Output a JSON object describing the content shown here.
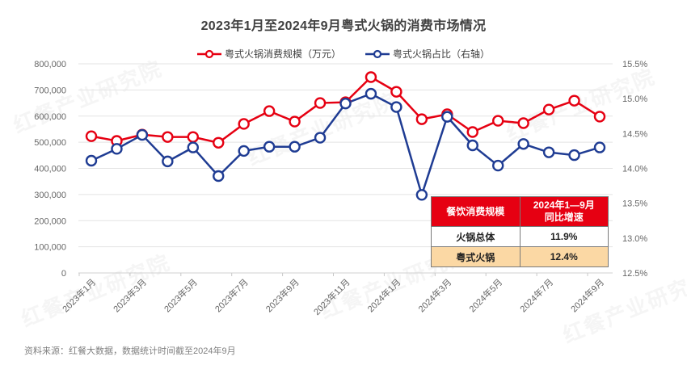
{
  "title": "2023年1月至2024年9月粤式火锅的消费市场情况",
  "legend": [
    {
      "label": "粤式火锅消费规模（万元）",
      "color": "#e60012",
      "axis": "left"
    },
    {
      "label": "粤式火锅占比（右轴）",
      "color": "#1f3c93",
      "axis": "right"
    }
  ],
  "source": "资料来源：红餐大数据，数据统计时间截至2024年9月",
  "watermark": "红餐产业研究院",
  "inset_table": {
    "header": [
      "餐饮消费规模",
      "2024年1—9月\n同比增速"
    ],
    "header_col1": "餐饮消费规模",
    "header_col2_line1": "2024年1—9月",
    "header_col2_line2": "同比增速",
    "rows": [
      {
        "name": "火锅总体",
        "value": "11.9%"
      },
      {
        "name": "粤式火锅",
        "value": "12.4%"
      }
    ]
  },
  "colors": {
    "red": "#e60012",
    "blue": "#1f3c93",
    "grid": "#e3e3e3",
    "table_header": "#e60012",
    "table_highlight": "#fbd8a4"
  },
  "chart_data": {
    "type": "line",
    "title": "2023年1月至2024年9月粤式火锅的消费市场情况",
    "xlabel": "",
    "ylabel": "",
    "x": [
      "2023年1月",
      "2023年2月",
      "2023年3月",
      "2023年4月",
      "2023年5月",
      "2023年6月",
      "2023年7月",
      "2023年8月",
      "2023年9月",
      "2023年10月",
      "2023年11月",
      "2023年12月",
      "2024年1月",
      "2024年2月",
      "2024年3月",
      "2024年4月",
      "2024年5月",
      "2024年6月",
      "2024年7月",
      "2024年8月",
      "2024年9月"
    ],
    "x_tick_labels": [
      "2023年1月",
      "2023年3月",
      "2023年5月",
      "2023年7月",
      "2023年9月",
      "2023年11月",
      "2024年1月",
      "2024年3月",
      "2024年5月",
      "2024年7月",
      "2024年9月"
    ],
    "series": [
      {
        "name": "粤式火锅消费规模（万元）",
        "axis": "left",
        "color": "#e60012",
        "values": [
          523000,
          505000,
          529000,
          520000,
          520000,
          498000,
          570000,
          619000,
          579000,
          650000,
          653000,
          749000,
          693000,
          588000,
          607000,
          539000,
          582000,
          573000,
          625000,
          659000,
          598000
        ]
      },
      {
        "name": "粤式火锅占比（右轴）",
        "axis": "right",
        "color": "#1f3c93",
        "unit": "%",
        "values": [
          14.11,
          14.28,
          14.48,
          14.1,
          14.3,
          13.89,
          14.25,
          14.31,
          14.31,
          14.44,
          14.93,
          15.07,
          14.88,
          13.62,
          14.74,
          14.33,
          14.04,
          14.35,
          14.23,
          14.19,
          14.3
        ]
      }
    ],
    "ylim_left": [
      0,
      800000
    ],
    "yticks_left": [
      "0",
      "100,000",
      "200,000",
      "300,000",
      "400,000",
      "500,000",
      "600,000",
      "700,000",
      "800,000"
    ],
    "ylim_right": [
      12.5,
      15.5
    ],
    "yticks_right": [
      "12.5%",
      "13.0%",
      "13.5%",
      "14.0%",
      "14.5%",
      "15.0%",
      "15.5%"
    ],
    "grid": true,
    "legend_position": "top",
    "annotations": [
      {
        "type": "table",
        "header": [
          "餐饮消费规模",
          "2024年1—9月同比增速"
        ],
        "rows": [
          [
            "火锅总体",
            "11.9%"
          ],
          [
            "粤式火锅",
            "12.4%"
          ]
        ]
      }
    ]
  }
}
